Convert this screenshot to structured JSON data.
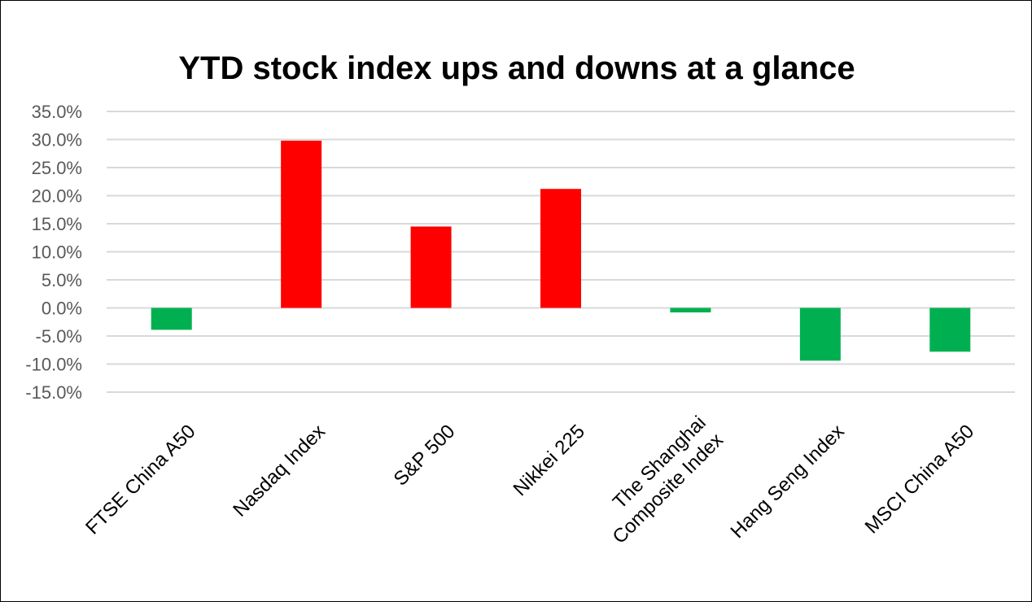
{
  "chart_data": {
    "type": "bar",
    "title": "YTD stock index ups and downs at a glance",
    "categories": [
      [
        "FTSE China A50"
      ],
      [
        "Nasdaq Index"
      ],
      [
        "S&P 500"
      ],
      [
        "Nikkei 225"
      ],
      [
        "The Shanghai",
        "Composite Index"
      ],
      [
        "Hang Seng Index"
      ],
      [
        "MSCI China A50"
      ]
    ],
    "values": [
      -3.9,
      29.8,
      14.5,
      21.2,
      -0.8,
      -9.4,
      -7.8
    ],
    "ylim": [
      -15,
      35
    ],
    "ytick_step": 5,
    "ytick_format": "percent_1dp",
    "xlabel": "",
    "ylabel": "",
    "grid": true,
    "legend": "none",
    "colors": {
      "positive": "#ff0000",
      "negative": "#00b050",
      "grid": "#d9d9d9",
      "text": "#595959"
    }
  }
}
